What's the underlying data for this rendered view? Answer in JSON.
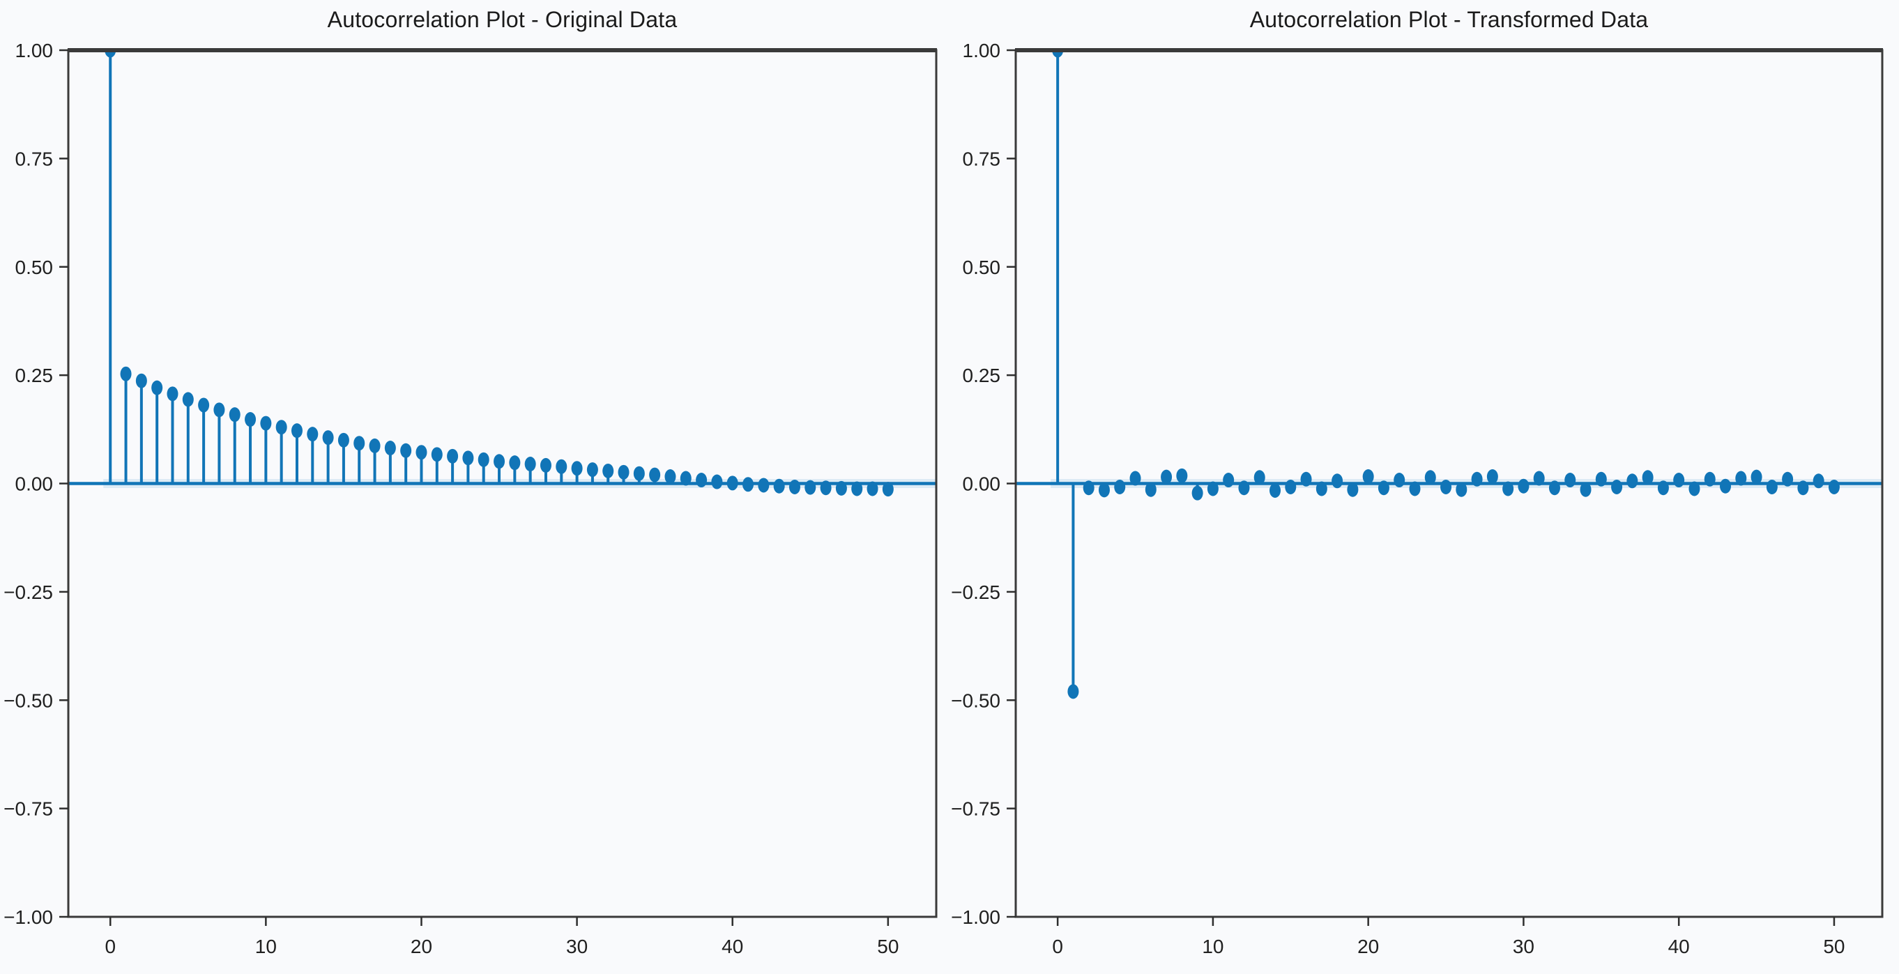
{
  "figure": {
    "background": "#f9fafc",
    "accent_blue": "#1175b7",
    "halo_blue": "#c3ddef",
    "spine_color": "#3a3a3a",
    "tick_color": "#2e2e2e",
    "text_color": "#202020"
  },
  "chart_data": [
    {
      "type": "stem",
      "title": "Autocorrelation Plot - Original Data",
      "xlabel": "",
      "ylabel": "",
      "legend": null,
      "grid": false,
      "xlim": [
        -2.7,
        53.1
      ],
      "ylim": [
        -1.0,
        1.0
      ],
      "xtick_values": [
        0,
        10,
        20,
        30,
        40,
        50
      ],
      "xtick_labels": [
        "0",
        "10",
        "20",
        "30",
        "40",
        "50"
      ],
      "ytick_values": [
        1.0,
        0.75,
        0.5,
        0.25,
        0.0,
        -0.25,
        -0.5,
        -0.75,
        -1.0
      ],
      "ytick_labels": [
        "1.00",
        "0.75",
        "0.50",
        "0.25",
        "0.00",
        "−0.25",
        "−0.50",
        "−0.75",
        "−1.00"
      ],
      "lags": [
        0,
        1,
        2,
        3,
        4,
        5,
        6,
        7,
        8,
        9,
        10,
        11,
        12,
        13,
        14,
        15,
        16,
        17,
        18,
        19,
        20,
        21,
        22,
        23,
        24,
        25,
        26,
        27,
        28,
        29,
        30,
        31,
        32,
        33,
        34,
        35,
        36,
        37,
        38,
        39,
        40,
        41,
        42,
        43,
        44,
        45,
        46,
        47,
        48,
        49,
        50
      ],
      "values": [
        1.0,
        0.253,
        0.237,
        0.221,
        0.207,
        0.194,
        0.181,
        0.17,
        0.159,
        0.148,
        0.139,
        0.13,
        0.122,
        0.114,
        0.106,
        0.1,
        0.093,
        0.087,
        0.082,
        0.076,
        0.072,
        0.067,
        0.063,
        0.059,
        0.055,
        0.051,
        0.048,
        0.045,
        0.042,
        0.039,
        0.035,
        0.032,
        0.029,
        0.026,
        0.023,
        0.02,
        0.016,
        0.012,
        0.008,
        0.004,
        0.001,
        -0.002,
        -0.004,
        -0.006,
        -0.008,
        -0.009,
        -0.01,
        -0.011,
        -0.012,
        -0.012,
        -0.013
      ]
    },
    {
      "type": "stem",
      "title": "Autocorrelation Plot - Transformed Data",
      "xlabel": "",
      "ylabel": "",
      "legend": null,
      "grid": false,
      "xlim": [
        -2.7,
        53.1
      ],
      "ylim": [
        -1.0,
        1.0
      ],
      "xtick_values": [
        0,
        10,
        20,
        30,
        40,
        50
      ],
      "xtick_labels": [
        "0",
        "10",
        "20",
        "30",
        "40",
        "50"
      ],
      "ytick_values": [
        1.0,
        0.75,
        0.5,
        0.25,
        0.0,
        -0.25,
        -0.5,
        -0.75,
        -1.0
      ],
      "ytick_labels": [
        "1.00",
        "0.75",
        "0.50",
        "0.25",
        "0.00",
        "−0.25",
        "−0.50",
        "−0.75",
        "−1.00"
      ],
      "lags": [
        0,
        1,
        2,
        3,
        4,
        5,
        6,
        7,
        8,
        9,
        10,
        11,
        12,
        13,
        14,
        15,
        16,
        17,
        18,
        19,
        20,
        21,
        22,
        23,
        24,
        25,
        26,
        27,
        28,
        29,
        30,
        31,
        32,
        33,
        34,
        35,
        36,
        37,
        38,
        39,
        40,
        41,
        42,
        43,
        44,
        45,
        46,
        47,
        48,
        49,
        50
      ],
      "values": [
        1.0,
        -0.48,
        -0.01,
        -0.015,
        -0.008,
        0.012,
        -0.014,
        0.015,
        0.018,
        -0.022,
        -0.012,
        0.008,
        -0.01,
        0.014,
        -0.016,
        -0.008,
        0.01,
        -0.012,
        0.006,
        -0.014,
        0.016,
        -0.01,
        0.008,
        -0.012,
        0.014,
        -0.008,
        -0.014,
        0.01,
        0.016,
        -0.012,
        -0.006,
        0.012,
        -0.01,
        0.008,
        -0.014,
        0.01,
        -0.008,
        0.006,
        0.014,
        -0.01,
        0.008,
        -0.012,
        0.01,
        -0.006,
        0.012,
        0.015,
        -0.008,
        0.01,
        -0.01,
        0.006,
        -0.008
      ]
    }
  ]
}
